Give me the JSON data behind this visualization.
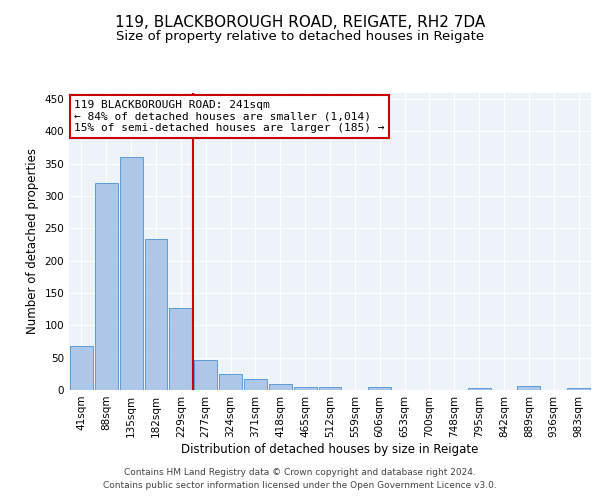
{
  "title": "119, BLACKBOROUGH ROAD, REIGATE, RH2 7DA",
  "subtitle": "Size of property relative to detached houses in Reigate",
  "xlabel": "Distribution of detached houses by size in Reigate",
  "ylabel": "Number of detached properties",
  "categories": [
    "41sqm",
    "88sqm",
    "135sqm",
    "182sqm",
    "229sqm",
    "277sqm",
    "324sqm",
    "371sqm",
    "418sqm",
    "465sqm",
    "512sqm",
    "559sqm",
    "606sqm",
    "653sqm",
    "700sqm",
    "748sqm",
    "795sqm",
    "842sqm",
    "889sqm",
    "936sqm",
    "983sqm"
  ],
  "values": [
    68,
    320,
    360,
    233,
    127,
    46,
    25,
    17,
    10,
    5,
    5,
    0,
    4,
    0,
    0,
    0,
    3,
    0,
    6,
    0,
    3
  ],
  "bar_color": "#aec6e8",
  "bar_edge_color": "#5b9bd5",
  "vline_x": 4.5,
  "vline_color": "#cc0000",
  "annotation_text": "119 BLACKBOROUGH ROAD: 241sqm\n← 84% of detached houses are smaller (1,014)\n15% of semi-detached houses are larger (185) →",
  "annotation_box_color": "#ffffff",
  "annotation_box_edge": "#cc0000",
  "ylim": [
    0,
    460
  ],
  "yticks": [
    0,
    50,
    100,
    150,
    200,
    250,
    300,
    350,
    400,
    450
  ],
  "title_fontsize": 11,
  "subtitle_fontsize": 9.5,
  "xlabel_fontsize": 8.5,
  "ylabel_fontsize": 8.5,
  "tick_fontsize": 7.5,
  "annotation_fontsize": 8,
  "footer_line1": "Contains HM Land Registry data © Crown copyright and database right 2024.",
  "footer_line2": "Contains public sector information licensed under the Open Government Licence v3.0.",
  "bg_color": "#eef3fa",
  "fig_bg_color": "#ffffff"
}
